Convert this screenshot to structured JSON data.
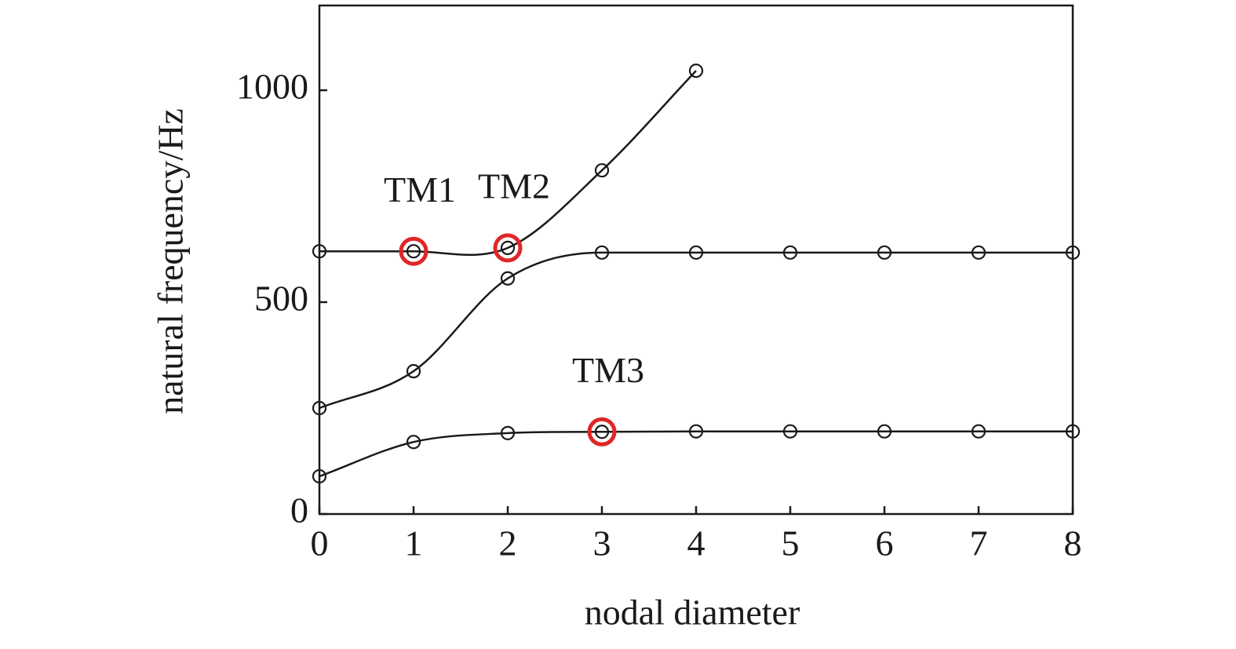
{
  "chart_data": {
    "type": "line",
    "xlabel": "nodal diameter",
    "ylabel": "natural frequency/Hz",
    "x": [
      0,
      1,
      2,
      3,
      4,
      5,
      6,
      7,
      8
    ],
    "series": [
      {
        "color": "#1a1a1a",
        "values": [
          89,
          170,
          191,
          194,
          195,
          195,
          195,
          195,
          195
        ]
      },
      {
        "color": "#1a1a1a",
        "values": [
          250,
          337,
          556,
          617,
          617,
          617,
          617,
          617,
          617
        ]
      },
      {
        "color": "#1a1a1a",
        "values": [
          620,
          620,
          628,
          811,
          1046,
          null,
          null,
          null,
          null
        ]
      }
    ],
    "highlights": [
      {
        "label": "TM1",
        "series": 2,
        "index": 1,
        "color": "#e02626"
      },
      {
        "label": "TM2",
        "series": 2,
        "index": 2,
        "color": "#e02626"
      },
      {
        "label": "TM3",
        "series": 0,
        "index": 3,
        "color": "#e02626"
      }
    ],
    "xlim": [
      0,
      8
    ],
    "xticks": [
      0,
      1,
      2,
      3,
      4,
      5,
      6,
      7,
      8
    ],
    "ylim": [
      0,
      1200
    ],
    "yticks": [
      0,
      500,
      1000
    ],
    "grid": false
  }
}
